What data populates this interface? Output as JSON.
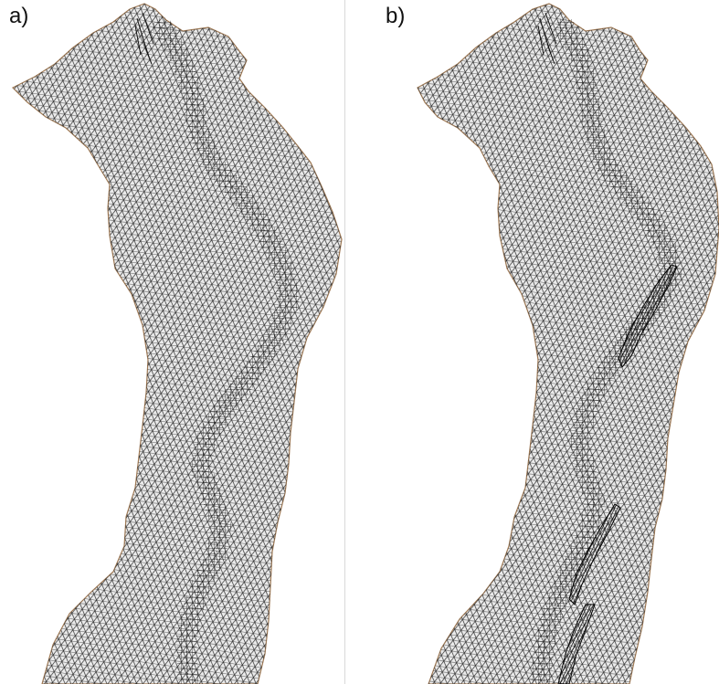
{
  "panels": [
    {
      "id": "a",
      "label": "a)"
    },
    {
      "id": "b",
      "label": "b)"
    }
  ],
  "colors": {
    "mesh_fill": "#ebebeb",
    "mesh_line": "#2b2b2b",
    "boundary": "#a07a55",
    "channel_line": "#111111",
    "dense_cluster": "#000000",
    "background": "#ffffff"
  }
}
